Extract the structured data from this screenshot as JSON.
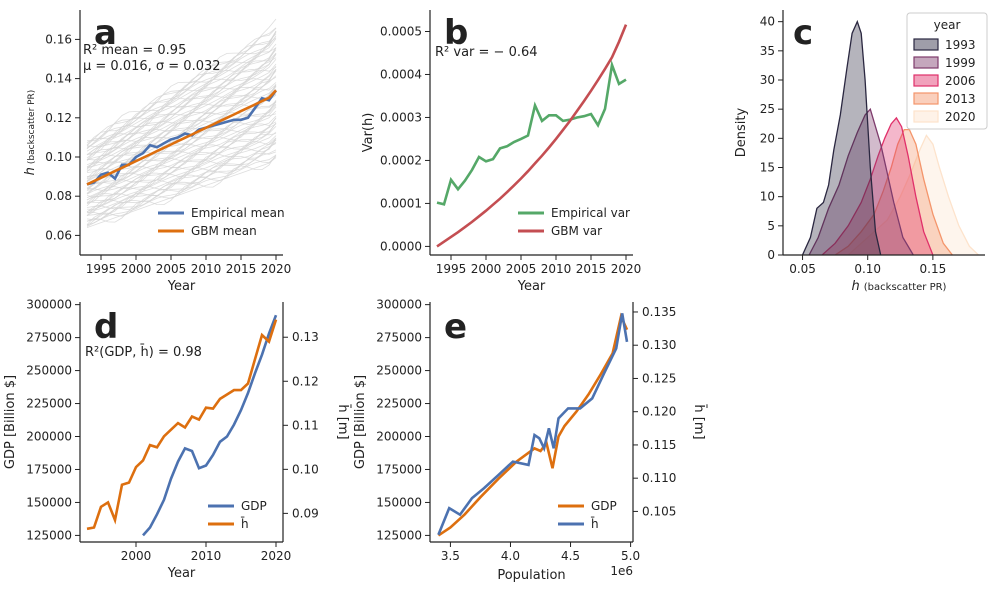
{
  "chart_data": [
    {
      "id": "a",
      "type": "line",
      "panel_label": "a",
      "xlabel": "Year",
      "ylabel_main": "h",
      "ylabel_sub": "(backscatter PR)",
      "xlim": [
        1992,
        2021
      ],
      "ylim": [
        0.05,
        0.175
      ],
      "xticks": [
        "1995",
        "2000",
        "2005",
        "2010",
        "2015",
        "2020"
      ],
      "yticks": [
        "0.06",
        "0.08",
        "0.10",
        "0.12",
        "0.14",
        "0.16"
      ],
      "annotation_line1": "R² mean = 0.95",
      "annotation_line2": "μ = 0.016, σ = 0.032",
      "legend_position": "lower-right",
      "background_traces": "many light-grey individual city trajectories",
      "x": [
        1993,
        1994,
        1995,
        1996,
        1997,
        1998,
        1999,
        2000,
        2001,
        2002,
        2003,
        2004,
        2005,
        2006,
        2007,
        2008,
        2009,
        2010,
        2011,
        2012,
        2013,
        2014,
        2015,
        2016,
        2017,
        2018,
        2019,
        2020
      ],
      "series": [
        {
          "name": "Empirical mean",
          "color": "#4c72b0",
          "values": [
            0.086,
            0.087,
            0.091,
            0.092,
            0.089,
            0.096,
            0.096,
            0.1,
            0.102,
            0.106,
            0.105,
            0.107,
            0.109,
            0.11,
            0.112,
            0.111,
            0.114,
            0.115,
            0.116,
            0.117,
            0.118,
            0.119,
            0.119,
            0.12,
            0.125,
            0.13,
            0.129,
            0.134
          ]
        },
        {
          "name": "GBM mean",
          "color": "#dd6f0f",
          "values": [
            0.086,
            0.0877,
            0.0894,
            0.0911,
            0.0928,
            0.0945,
            0.0962,
            0.0979,
            0.0996,
            0.1013,
            0.103,
            0.1047,
            0.1064,
            0.1081,
            0.1098,
            0.1115,
            0.1132,
            0.1149,
            0.1166,
            0.1183,
            0.12,
            0.1217,
            0.1234,
            0.1251,
            0.1268,
            0.1285,
            0.1302,
            0.134
          ]
        }
      ]
    },
    {
      "id": "b",
      "type": "line",
      "panel_label": "b",
      "xlabel": "Year",
      "ylabel": "Var(h)",
      "xlim": [
        1992,
        2021
      ],
      "ylim": [
        -2e-05,
        0.00055
      ],
      "xticks": [
        "1995",
        "2000",
        "2005",
        "2010",
        "2015",
        "2020"
      ],
      "yticks": [
        "0.0000",
        "0.0001",
        "0.0002",
        "0.0003",
        "0.0004",
        "0.0005"
      ],
      "annotation": "R²  var = − 0.64",
      "legend_position": "lower-right",
      "x": [
        1993,
        1994,
        1995,
        1996,
        1997,
        1998,
        1999,
        2000,
        2001,
        2002,
        2003,
        2004,
        2005,
        2006,
        2007,
        2008,
        2009,
        2010,
        2011,
        2012,
        2013,
        2014,
        2015,
        2016,
        2017,
        2018,
        2019,
        2020
      ],
      "series": [
        {
          "name": "Empirical var",
          "color": "#55a868",
          "values": [
            0.000102,
            9.8e-05,
            0.000155,
            0.000133,
            0.000153,
            0.000178,
            0.000208,
            0.000198,
            0.000203,
            0.000228,
            0.000233,
            0.000243,
            0.00025,
            0.000258,
            0.000328,
            0.000292,
            0.000305,
            0.000305,
            0.000292,
            0.000295,
            0.0003,
            0.000303,
            0.000308,
            0.000282,
            0.00032,
            0.000422,
            0.000378,
            0.000388
          ]
        },
        {
          "name": "GBM var",
          "color": "#c44e52",
          "values": [
            0.0,
            1.1e-05,
            2.2e-05,
            3.3e-05,
            4.5e-05,
            5.7e-05,
            7e-05,
            8.3e-05,
            9.7e-05,
            0.000111,
            0.000126,
            0.000142,
            0.000158,
            0.000175,
            0.000193,
            0.000211,
            0.00023,
            0.00025,
            0.000271,
            0.000292,
            0.000315,
            0.000338,
            0.000362,
            0.000387,
            0.000413,
            0.00044,
            0.000476,
            0.000516
          ]
        }
      ]
    },
    {
      "id": "c",
      "type": "area",
      "subtype": "kde-density",
      "panel_label": "c",
      "xlabel_main": "h",
      "xlabel_sub": "(backscatter PR)",
      "ylabel": "Density",
      "xlim": [
        0.035,
        0.19
      ],
      "ylim": [
        0,
        42
      ],
      "xticks": [
        "0.05",
        "0.10",
        "0.15"
      ],
      "yticks": [
        "0",
        "5",
        "10",
        "15",
        "20",
        "25",
        "30",
        "35",
        "40"
      ],
      "legend_title": "year",
      "legend_position": "top-right",
      "series": [
        {
          "name": "2020",
          "color": "#fde3cc",
          "x": [
            0.085,
            0.095,
            0.105,
            0.115,
            0.125,
            0.133,
            0.14,
            0.145,
            0.15,
            0.155,
            0.162,
            0.17,
            0.178,
            0.185
          ],
          "values": [
            0,
            2,
            4,
            6,
            10,
            14,
            18,
            20.5,
            19,
            15,
            10,
            5,
            1.5,
            0
          ]
        },
        {
          "name": "2013",
          "color": "#f4956b",
          "x": [
            0.075,
            0.085,
            0.095,
            0.105,
            0.112,
            0.118,
            0.123,
            0.128,
            0.132,
            0.137,
            0.143,
            0.15,
            0.158,
            0.165
          ],
          "values": [
            0,
            1.5,
            4,
            7,
            11,
            15,
            19,
            21.5,
            21.5,
            19,
            13,
            7,
            2,
            0
          ]
        },
        {
          "name": "2006",
          "color": "#e0306a",
          "x": [
            0.065,
            0.075,
            0.085,
            0.095,
            0.102,
            0.108,
            0.113,
            0.118,
            0.122,
            0.126,
            0.131,
            0.137,
            0.143,
            0.15
          ],
          "values": [
            0,
            2,
            5,
            9,
            13,
            17,
            20,
            22.5,
            23.5,
            22,
            17,
            10,
            4,
            0
          ]
        },
        {
          "name": "1999",
          "color": "#7e3b6c",
          "x": [
            0.055,
            0.062,
            0.07,
            0.078,
            0.085,
            0.092,
            0.098,
            0.102,
            0.106,
            0.11,
            0.114,
            0.12,
            0.127,
            0.135
          ],
          "values": [
            0,
            3,
            8,
            12,
            17,
            21,
            24,
            25,
            22,
            19,
            15,
            9,
            3,
            0
          ]
        },
        {
          "name": "1993",
          "color": "#2a2740",
          "x": [
            0.05,
            0.056,
            0.061,
            0.066,
            0.07,
            0.074,
            0.079,
            0.084,
            0.088,
            0.092,
            0.095,
            0.098,
            0.102,
            0.106,
            0.11
          ],
          "values": [
            0,
            3,
            8,
            9,
            12,
            18,
            24,
            32,
            38,
            40,
            38,
            30,
            15,
            4,
            0
          ]
        }
      ]
    },
    {
      "id": "d",
      "type": "line",
      "panel_label": "d",
      "xlabel": "Year",
      "ylabel_left": "GDP [Billion $]",
      "ylabel_right": "h̄ [m]",
      "xlim": [
        1992,
        2021
      ],
      "ylim_left": [
        120000,
        302000
      ],
      "ylim_right": [
        0.0835,
        0.138
      ],
      "xticks": [
        "2000",
        "2010",
        "2020"
      ],
      "yticks_left": [
        "125000",
        "150000",
        "175000",
        "200000",
        "225000",
        "250000",
        "275000",
        "300000"
      ],
      "yticks_right": [
        "0.09",
        "0.10",
        "0.11",
        "0.12",
        "0.13"
      ],
      "annotation": "R²(GDP, h̄) = 0.98",
      "legend_position": "lower-right",
      "series": [
        {
          "name": "GDP",
          "axis": "left",
          "color": "#4c72b0",
          "x": [
            2001,
            2002,
            2003,
            2004,
            2005,
            2006,
            2007,
            2008,
            2009,
            2010,
            2011,
            2012,
            2013,
            2014,
            2015,
            2016,
            2017,
            2018,
            2019,
            2020
          ],
          "values": [
            125000,
            131000,
            141000,
            152000,
            168000,
            181000,
            191000,
            189000,
            176000,
            178000,
            186000,
            196000,
            200000,
            209000,
            220000,
            233000,
            248000,
            262000,
            278000,
            292000
          ]
        },
        {
          "name": "h̄",
          "axis": "right",
          "color": "#dd6f0f",
          "x": [
            1993,
            1994,
            1995,
            1996,
            1997,
            1998,
            1999,
            2000,
            2001,
            2002,
            2003,
            2004,
            2005,
            2006,
            2007,
            2008,
            2009,
            2010,
            2011,
            2012,
            2013,
            2014,
            2015,
            2016,
            2017,
            2018,
            2019,
            2020
          ],
          "values": [
            0.0865,
            0.0868,
            0.0915,
            0.0925,
            0.0885,
            0.0965,
            0.097,
            0.1005,
            0.102,
            0.1055,
            0.105,
            0.1075,
            0.109,
            0.1105,
            0.1095,
            0.112,
            0.1113,
            0.114,
            0.1138,
            0.116,
            0.117,
            0.118,
            0.118,
            0.1195,
            0.125,
            0.1305,
            0.129,
            0.134
          ]
        }
      ]
    },
    {
      "id": "e",
      "type": "line",
      "panel_label": "e",
      "xlabel": "Population",
      "x_offset_label": "1e6",
      "ylabel_left": "GDP [Billion $]",
      "ylabel_right": "h̄ [m]",
      "xlim": [
        3.33,
        5.02
      ],
      "ylim_left": [
        120000,
        302000
      ],
      "ylim_right": [
        0.1004,
        0.1365
      ],
      "xticks": [
        "3.5",
        "4.0",
        "4.5",
        "5.0"
      ],
      "yticks_left": [
        "125000",
        "150000",
        "175000",
        "200000",
        "225000",
        "250000",
        "275000",
        "300000"
      ],
      "yticks_right": [
        "0.105",
        "0.110",
        "0.115",
        "0.120",
        "0.125",
        "0.130",
        "0.135"
      ],
      "legend_position": "lower-right",
      "series": [
        {
          "name": "GDP",
          "axis": "left",
          "color": "#dd6f0f",
          "x": [
            3.4,
            3.5,
            3.62,
            3.75,
            3.9,
            4.05,
            4.2,
            4.25,
            4.3,
            4.35,
            4.4,
            4.45,
            4.55,
            4.65,
            4.75,
            4.85,
            4.92,
            4.97
          ],
          "values": [
            125000,
            131000,
            141000,
            154000,
            168000,
            181000,
            191000,
            189000,
            195000,
            176000,
            200000,
            208000,
            219000,
            232000,
            247000,
            263000,
            291000,
            281000
          ]
        },
        {
          "name": "h̄",
          "axis": "right",
          "color": "#4c72b0",
          "x": [
            3.4,
            3.49,
            3.58,
            3.68,
            3.78,
            3.9,
            4.02,
            4.15,
            4.2,
            4.24,
            4.28,
            4.32,
            4.36,
            4.4,
            4.48,
            4.58,
            4.68,
            4.78,
            4.88,
            4.93,
            4.97
          ],
          "values": [
            0.1015,
            0.1055,
            0.1045,
            0.107,
            0.1085,
            0.1105,
            0.1125,
            0.112,
            0.1165,
            0.116,
            0.1145,
            0.1175,
            0.1145,
            0.119,
            0.1205,
            0.1205,
            0.122,
            0.1258,
            0.1295,
            0.1348,
            0.1305
          ]
        }
      ]
    }
  ]
}
